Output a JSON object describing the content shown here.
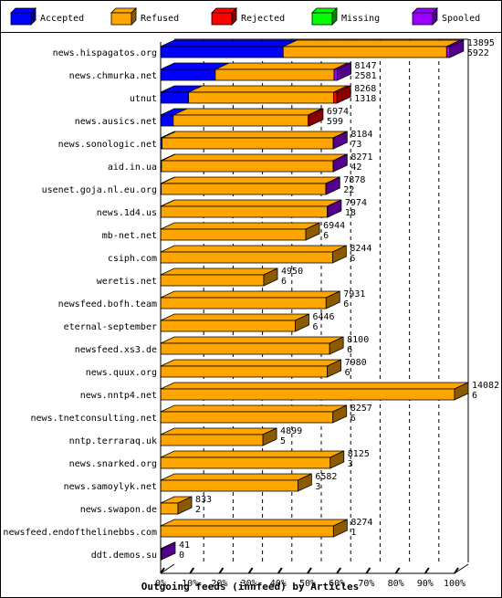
{
  "chart_data": {
    "type": "bar",
    "title": "",
    "xlabel": "Outgoing feeds (innfeed) by Articles",
    "ylabel": "",
    "xlim": [
      0,
      100
    ],
    "stacked": true,
    "legend_position": "top",
    "x_ticks": [
      "0%",
      "10%",
      "20%",
      "30%",
      "40%",
      "50%",
      "60%",
      "70%",
      "80%",
      "90%",
      "100%"
    ],
    "legend": [
      {
        "label": "Accepted",
        "color": "#0000ff"
      },
      {
        "label": "Refused",
        "color": "#ffa500"
      },
      {
        "label": "Rejected",
        "color": "#ff0000"
      },
      {
        "label": "Missing",
        "color": "#00ff00"
      },
      {
        "label": "Spooled",
        "color": "#9900ff"
      }
    ],
    "rows": [
      {
        "name": "news.hispagatos.org",
        "total": "13895",
        "second": "5922",
        "segments": [
          41.7,
          55.6,
          0,
          0,
          1.1
        ]
      },
      {
        "name": "news.chmurka.net",
        "total": "8147",
        "second": "2581",
        "segments": [
          18.6,
          40.4,
          0,
          0,
          1.1
        ]
      },
      {
        "name": "utnut",
        "total": "8268",
        "second": "1318",
        "segments": [
          9.5,
          49.4,
          1.1,
          0,
          0
        ]
      },
      {
        "name": "news.ausics.net",
        "total": "6974",
        "second": "599",
        "segments": [
          4.3,
          45.9,
          0.4,
          0,
          0
        ]
      },
      {
        "name": "news.sonologic.net",
        "total": "8184",
        "second": "73",
        "segments": [
          0.5,
          58.2,
          0,
          0,
          0.1
        ]
      },
      {
        "name": "aid.in.ua",
        "total": "8271",
        "second": "42",
        "segments": [
          0.3,
          58.4,
          0,
          0,
          0.1
        ]
      },
      {
        "name": "usenet.goja.nl.eu.org",
        "total": "7878",
        "second": "22",
        "segments": [
          0.2,
          56.0,
          0,
          0,
          0.1
        ]
      },
      {
        "name": "news.1d4.us",
        "total": "7974",
        "second": "18",
        "segments": [
          0.1,
          56.6,
          0,
          0,
          0.1
        ]
      },
      {
        "name": "mb-net.net",
        "total": "6944",
        "second": "6",
        "segments": [
          0,
          49.4,
          0,
          0,
          0
        ]
      },
      {
        "name": "csiph.com",
        "total": "8244",
        "second": "6",
        "segments": [
          0,
          58.5,
          0,
          0,
          0
        ]
      },
      {
        "name": "weretis.net",
        "total": "4950",
        "second": "6",
        "segments": [
          0,
          35.1,
          0,
          0,
          0
        ]
      },
      {
        "name": "newsfeed.bofh.team",
        "total": "7931",
        "second": "6",
        "segments": [
          0,
          56.3,
          0,
          0,
          0
        ]
      },
      {
        "name": "eternal-september",
        "total": "6446",
        "second": "6",
        "segments": [
          0,
          45.8,
          0,
          0,
          0
        ]
      },
      {
        "name": "newsfeed.xs3.de",
        "total": "8100",
        "second": "6",
        "segments": [
          0,
          57.5,
          0,
          0,
          0
        ]
      },
      {
        "name": "news.quux.org",
        "total": "7980",
        "second": "6",
        "segments": [
          0,
          56.7,
          0,
          0,
          0
        ]
      },
      {
        "name": "news.nntp4.net",
        "total": "14082",
        "second": "6",
        "segments": [
          0,
          100,
          0,
          0,
          0
        ]
      },
      {
        "name": "news.tnetconsulting.net",
        "total": "8257",
        "second": "6",
        "segments": [
          0,
          58.6,
          0,
          0,
          0
        ]
      },
      {
        "name": "nntp.terraraq.uk",
        "total": "4899",
        "second": "5",
        "segments": [
          0,
          34.8,
          0,
          0,
          0
        ]
      },
      {
        "name": "news.snarked.org",
        "total": "8125",
        "second": "3",
        "segments": [
          0,
          57.7,
          0,
          0,
          0
        ]
      },
      {
        "name": "news.samoylyk.net",
        "total": "6582",
        "second": "3",
        "segments": [
          0,
          46.7,
          0,
          0,
          0
        ]
      },
      {
        "name": "news.swapon.de",
        "total": "833",
        "second": "2",
        "segments": [
          0,
          5.9,
          0,
          0,
          0
        ]
      },
      {
        "name": "newsfeed.endofthelinebbs.com",
        "total": "8274",
        "second": "1",
        "segments": [
          0,
          58.8,
          0,
          0,
          0
        ]
      },
      {
        "name": "ddt.demos.su",
        "total": "41",
        "second": "0",
        "segments": [
          0,
          0,
          0,
          0,
          0.3
        ]
      }
    ]
  }
}
